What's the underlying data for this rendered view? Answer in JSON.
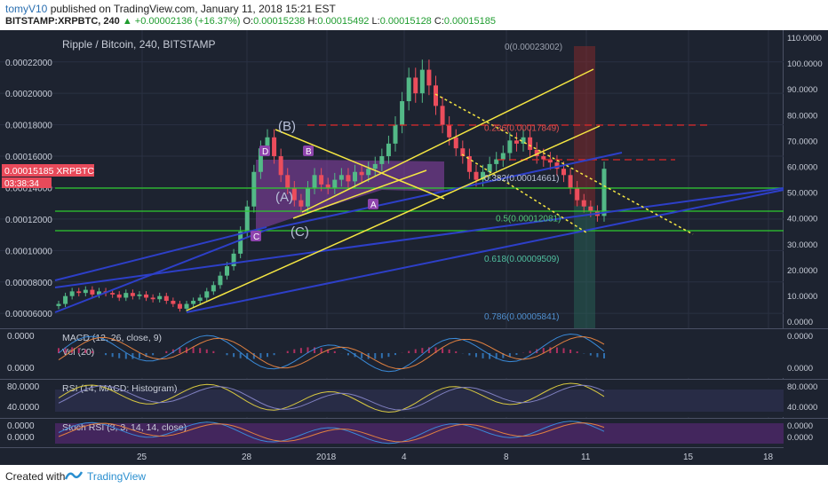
{
  "header": {
    "user": "tomyV10",
    "published": "published on TradingView.com, January 11, 2018 15:21 EST",
    "symbol_line_prefix": "BITSTAMP:XRPBTC, 240",
    "change": "+0.00002136 (+16.37%)",
    "o_label": "O:",
    "o": "0.00015238",
    "h_label": "H:",
    "h": "0.00015492",
    "l_label": "L:",
    "l": "0.00015128",
    "c_label": "C:",
    "c": "0.00015185"
  },
  "footer": {
    "created": "Created with",
    "brand": "TradingView"
  },
  "colors": {
    "bg": "#1d2330",
    "up": "#53b987",
    "down": "#eb4d5c",
    "yellow": "#f5e642",
    "blue": "#2d3fc8",
    "green": "#2ecc2e",
    "red_dash": "#e02828",
    "purple": "#9b59b6"
  },
  "chart_data": {
    "type": "candlestick",
    "title": "Ripple / Bitcoin, 240, BITSTAMP",
    "price_label": "0.00015185 XRPBTC",
    "countdown": "03:38:34",
    "y_left_ticks": [
      "0.00022000",
      "0.00020000",
      "0.00018000",
      "0.00016000",
      "0.00014000",
      "0.00012000",
      "0.00010000",
      "0.00008000",
      "0.00006000"
    ],
    "y_left_values": [
      0.00022,
      0.0002,
      0.00018,
      0.00016,
      0.00014,
      0.00012,
      0.0001,
      8e-05,
      6e-05
    ],
    "y_right_ticks": [
      "110.0000",
      "100.0000",
      "90.0000",
      "80.0000",
      "70.0000",
      "60.0000",
      "50.0000",
      "40.0000",
      "30.0000",
      "20.0000",
      "10.0000",
      "0.0000"
    ],
    "x_ticks": [
      "25",
      "28",
      "2018",
      "4",
      "8",
      "11",
      "15",
      "18"
    ],
    "fib_levels": [
      {
        "label": "0(0.00023002)",
        "value": 0.00023002
      },
      {
        "label": "0.236(0.00017849)",
        "value": 0.00017849
      },
      {
        "label": "0.382(0.00014661)",
        "value": 0.00014661
      },
      {
        "label": "0.5(0.00012081)",
        "value": 0.00012081
      },
      {
        "label": "0.618(0.00009509)",
        "value": 9.509e-05
      },
      {
        "label": "0.786(0.00005841)",
        "value": 5.841e-05
      }
    ],
    "wave_labels": [
      "(B)",
      "(A)",
      "(C)",
      "D",
      "B",
      "A",
      "C"
    ],
    "candles_close": [
      6.6e-05,
      7.1e-05,
      7.4e-05,
      7.3e-05,
      7.5e-05,
      7.2e-05,
      7.4e-05,
      7.3e-05,
      7.2e-05,
      7e-05,
      7.3e-05,
      7.1e-05,
      7.2e-05,
      7e-05,
      6.9e-05,
      7.1e-05,
      6.8e-05,
      6.6e-05,
      6.3e-05,
      6.6e-05,
      6.8e-05,
      7e-05,
      7.4e-05,
      7.8e-05,
      8.4e-05,
      9e-05,
      9.8e-05,
      0.000112,
      0.000128,
      0.00015,
      0.000165,
      0.000172,
      0.00016,
      0.000148,
      0.00014,
      0.000132,
      0.000128,
      0.00014,
      0.000148,
      0.000142,
      0.00014,
      0.000145,
      0.000148,
      0.000144,
      0.00015,
      0.000148,
      0.000152,
      0.000155,
      0.00016,
      0.000168,
      0.00018,
      0.000195,
      0.00021,
      0.0002,
      0.000215,
      0.000205,
      0.000192,
      0.00018,
      0.000172,
      0.000165,
      0.00016,
      0.00015,
      0.000145,
      0.00015,
      0.000155,
      0.000158,
      0.000162,
      0.00017,
      0.000168,
      0.000172,
      0.000164,
      0.00016,
      0.000158,
      0.000156,
      0.000152,
      0.000148,
      0.00014,
      0.000132,
      0.000128,
      0.000125,
      0.000122,
      0.000152
    ],
    "indicators": [
      {
        "label": "MACD (12, 26, close, 9)",
        "ticks": [
          "0.0000",
          "0.0000"
        ]
      },
      {
        "label": "Vol (20)",
        "ticks": []
      },
      {
        "label": "RSI (14, MACD: Histogram)",
        "ticks": [
          "80.0000",
          "40.0000"
        ]
      },
      {
        "label": "Stoch RSI (3, 3, 14, 14, close)",
        "ticks": [
          "0.0000",
          "0.0000"
        ]
      }
    ]
  }
}
